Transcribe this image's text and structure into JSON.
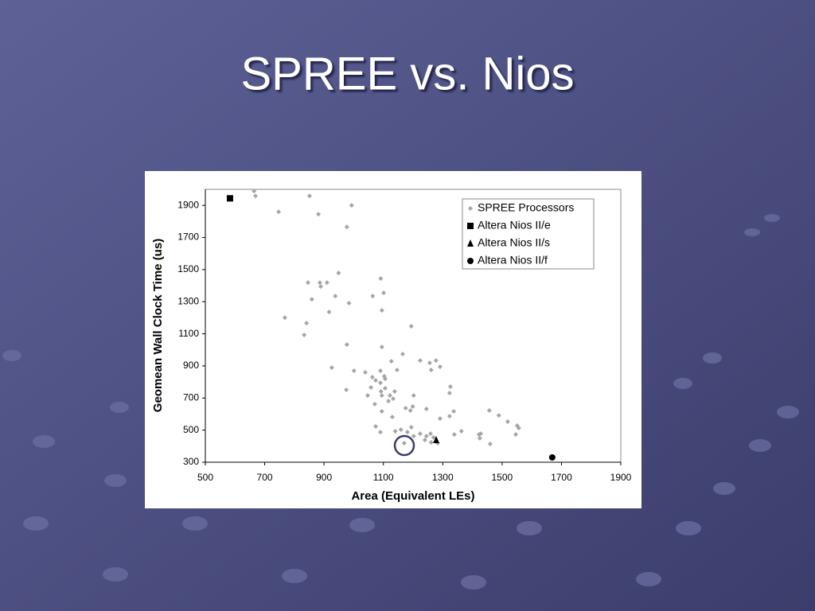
{
  "title": "SPREE vs. Nios",
  "chart_data": {
    "type": "scatter",
    "x_label": "Area (Equivalent LEs)",
    "y_label": "Geomean Wall Clock Time (us)",
    "xlim": [
      500,
      1900
    ],
    "xticks": [
      500,
      700,
      900,
      1100,
      1300,
      1500,
      1700,
      1900
    ],
    "ylim": [
      300,
      2000
    ],
    "yticks": [
      300,
      500,
      700,
      900,
      1100,
      1300,
      1500,
      1700,
      1900
    ],
    "grid": false,
    "legend": "top-right",
    "series": [
      {
        "name": "SPREE Processors",
        "color": "#a6a6a6",
        "marker": "diamond",
        "x": [
          664,
          669,
          747,
          851,
          881,
          993,
          977,
          846,
          886,
          889,
          910,
          859,
          949,
          938,
          984,
          1064,
          1091,
          1101,
          1095,
          768,
          841,
          833,
          917,
          1194,
          977,
          1095,
          926,
          1001,
          1039,
          1063,
          1090,
          1127,
          1165,
          1146,
          1224,
          1256,
          1277,
          1261,
          1291,
          1103,
          1074,
          1090,
          1106,
          1058,
          1047,
          1092,
          1106,
          1122,
          1138,
          1133,
          975,
          1095,
          1117,
          1202,
          1095,
          1071,
          1199,
          1191,
          1175,
          1245,
          1323,
          1326,
          1337,
          1323,
          1291,
          1130,
          1074,
          1090,
          1140,
          1159,
          1181,
          1194,
          1202,
          1224,
          1245,
          1259,
          1269,
          1240,
          1261,
          1283,
          1170,
          1339,
          1363,
          1422,
          1425,
          1460,
          1457,
          1489,
          1519,
          1551,
          1556,
          1546,
          1428
        ],
        "values": [
          1989,
          1959,
          1860,
          1959,
          1845,
          1900,
          1766,
          1419,
          1419,
          1395,
          1419,
          1315,
          1479,
          1335,
          1291,
          1335,
          1444,
          1355,
          1246,
          1201,
          1167,
          1093,
          1236,
          1147,
          1033,
          1018,
          889,
          870,
          860,
          830,
          870,
          929,
          974,
          875,
          934,
          919,
          934,
          875,
          895,
          835,
          810,
          795,
          820,
          766,
          716,
          741,
          761,
          716,
          741,
          696,
          751,
          716,
          681,
          716,
          617,
          662,
          647,
          622,
          637,
          632,
          731,
          771,
          617,
          587,
          572,
          582,
          523,
          488,
          493,
          503,
          488,
          518,
          463,
          478,
          463,
          478,
          454,
          439,
          424,
          419,
          419,
          473,
          493,
          473,
          449,
          414,
          622,
          592,
          553,
          528,
          513,
          473,
          478
        ]
      },
      {
        "name": "Altera Nios II/e",
        "color": "#000000",
        "marker": "square",
        "x": [
          583
        ],
        "values": [
          1944
        ]
      },
      {
        "name": "Altera Nios II/s",
        "color": "#000000",
        "marker": "triangle",
        "x": [
          1278
        ],
        "values": [
          439
        ]
      },
      {
        "name": "Altera Nios II/f",
        "color": "#000000",
        "marker": "circle",
        "x": [
          1669
        ],
        "values": [
          330
        ]
      }
    ]
  }
}
